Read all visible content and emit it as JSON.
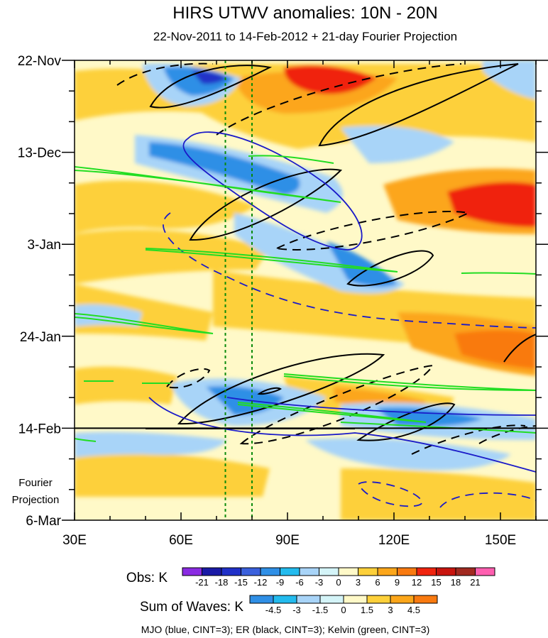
{
  "chart_data": {
    "type": "heatmap",
    "title": "HIRS UTWV anomalies: 10N - 20N",
    "subtitle": "22-Nov-2011 to 14-Feb-2012 + 21-day Fourier Projection",
    "x_ticks": [
      "30E",
      "60E",
      "90E",
      "120E",
      "150E"
    ],
    "x_tick_values": [
      30,
      60,
      90,
      120,
      150
    ],
    "xlim": [
      30,
      160
    ],
    "y_ticks": [
      "22-Nov",
      "13-Dec",
      "3-Jan",
      "24-Jan",
      "14-Feb",
      "6-Mar"
    ],
    "y_tick_days": [
      0,
      21,
      42,
      63,
      84,
      105
    ],
    "ylim_days": [
      0,
      105
    ],
    "observation_end": "14-Feb",
    "observation_end_day": 84,
    "projection_label": [
      "Fourier",
      "Projection"
    ],
    "reference_longitudes": [
      72.5,
      80
    ],
    "obs_legend": {
      "label": "Obs: K",
      "levels": [
        "-21",
        "-18",
        "-15",
        "-12",
        "-9",
        "-6",
        "-3",
        "0",
        "3",
        "6",
        "9",
        "12",
        "15",
        "18",
        "21"
      ],
      "colors": [
        "#8a2be2",
        "#1a1aa6",
        "#2030c8",
        "#3a60dc",
        "#2f8fe6",
        "#23bbee",
        "#a8d4f8",
        "#d4f4f8",
        "#fff9c8",
        "#fdd03a",
        "#fca61a",
        "#f97a10",
        "#f0240e",
        "#c8140e",
        "#a12a20",
        "#ff5fb0"
      ]
    },
    "waves_legend": {
      "label": "Sum of Waves: K",
      "levels": [
        "-4.5",
        "-3",
        "-1.5",
        "0",
        "1.5",
        "3",
        "4.5"
      ],
      "colors": [
        "#2f8fe6",
        "#23bbee",
        "#a8d4f8",
        "#d4f4f8",
        "#fff9c8",
        "#fdd03a",
        "#fca61a",
        "#f97a10"
      ]
    },
    "footnote": "MJO (blue, CINT=3); ER (black, CINT=3); Kelvin (green, CINT=3)",
    "contours": {
      "mjo_color": "#1a1ac8",
      "er_color": "#000000",
      "kelvin_color": "#22dd22",
      "reference_color": "#0a8a0a"
    }
  }
}
